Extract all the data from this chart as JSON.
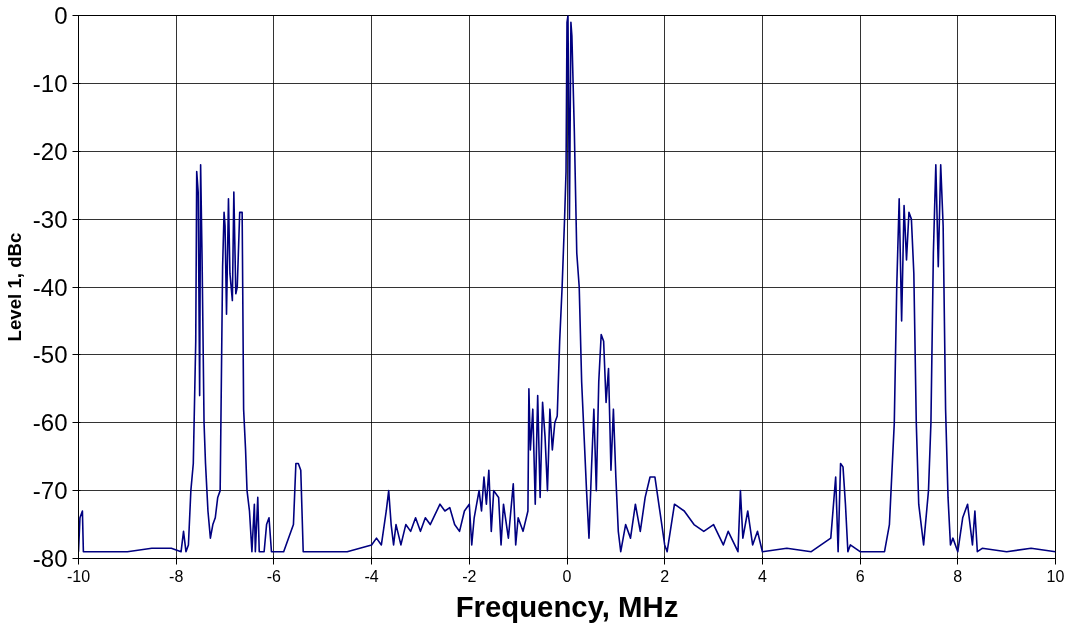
{
  "chart_data": {
    "type": "line",
    "xlabel": "Frequency, MHz",
    "ylabel": "Level 1, dBc",
    "xlim": [
      -10,
      10
    ],
    "ylim": [
      -80,
      0
    ],
    "xticks": [
      -10,
      -8,
      -6,
      -4,
      -2,
      0,
      2,
      4,
      6,
      8,
      10
    ],
    "yticks": [
      -80,
      -70,
      -60,
      -50,
      -40,
      -30,
      -20,
      -10,
      0
    ],
    "grid": true,
    "marker": "none",
    "line_style": "solid",
    "series": [
      {
        "color": "#000080",
        "x": [
          -10,
          -9.97,
          -9.92,
          -9.9,
          -9.5,
          -9,
          -8.5,
          -8.1,
          -7.9,
          -7.85,
          -7.8,
          -7.75,
          -7.7,
          -7.65,
          -7.6,
          -7.58,
          -7.55,
          -7.52,
          -7.5,
          -7.47,
          -7.43,
          -7.4,
          -7.35,
          -7.3,
          -7.25,
          -7.2,
          -7.15,
          -7.1,
          -7.05,
          -7.02,
          -7,
          -6.97,
          -6.93,
          -6.9,
          -6.85,
          -6.82,
          -6.78,
          -6.75,
          -6.7,
          -6.65,
          -6.62,
          -6.58,
          -6.55,
          -6.5,
          -6.45,
          -6.4,
          -6.38,
          -6.33,
          -6.3,
          -6.2,
          -6.15,
          -6.1,
          -6.05,
          -6,
          -5.8,
          -5.6,
          -5.55,
          -5.5,
          -5.45,
          -5.4,
          -5,
          -4.5,
          -4,
          -3.9,
          -3.8,
          -3.7,
          -3.65,
          -3.6,
          -3.55,
          -3.5,
          -3.4,
          -3.3,
          -3.2,
          -3.1,
          -3,
          -2.9,
          -2.8,
          -2.6,
          -2.5,
          -2.4,
          -2.3,
          -2.2,
          -2.1,
          -2,
          -1.95,
          -1.9,
          -1.8,
          -1.75,
          -1.7,
          -1.65,
          -1.6,
          -1.55,
          -1.5,
          -1.4,
          -1.35,
          -1.3,
          -1.2,
          -1.1,
          -1.05,
          -1,
          -0.9,
          -0.8,
          -0.78,
          -0.75,
          -0.7,
          -0.65,
          -0.6,
          -0.55,
          -0.5,
          -0.45,
          -0.4,
          -0.35,
          -0.3,
          -0.25,
          -0.2,
          -0.15,
          -0.1,
          -0.05,
          -0.02,
          0,
          0.02,
          0.05,
          0.08,
          0.1,
          0.15,
          0.2,
          0.25,
          0.3,
          0.35,
          0.4,
          0.45,
          0.5,
          0.55,
          0.6,
          0.65,
          0.7,
          0.75,
          0.8,
          0.85,
          0.9,
          0.95,
          1,
          1.05,
          1.1,
          1.2,
          1.3,
          1.4,
          1.5,
          1.6,
          1.7,
          1.8,
          1.9,
          2,
          2.05,
          2.2,
          2.4,
          2.6,
          2.8,
          3,
          3.2,
          3.3,
          3.5,
          3.55,
          3.6,
          3.7,
          3.8,
          3.9,
          4,
          4.5,
          5,
          5.4,
          5.5,
          5.55,
          5.6,
          5.65,
          5.7,
          5.75,
          5.8,
          6,
          6.5,
          6.6,
          6.7,
          6.75,
          6.8,
          6.85,
          6.9,
          6.95,
          7,
          7.05,
          7.1,
          7.15,
          7.2,
          7.3,
          7.4,
          7.45,
          7.5,
          7.55,
          7.6,
          7.65,
          7.7,
          7.75,
          7.8,
          7.85,
          7.9,
          8,
          8.1,
          8.2,
          8.3,
          8.35,
          8.4,
          8.5,
          9,
          9.5,
          10
        ],
        "values": [
          -79,
          -74,
          -73,
          -79,
          -79,
          -79,
          -78.5,
          -78.5,
          -79,
          -76,
          -79,
          -78,
          -70,
          -66,
          -48,
          -23,
          -26,
          -56,
          -22,
          -36,
          -60,
          -66,
          -73,
          -77,
          -75,
          -74,
          -71,
          -70,
          -37,
          -29,
          -31,
          -44,
          -27,
          -38,
          -42,
          -26,
          -41,
          -40,
          -29,
          -29,
          -58,
          -64,
          -70,
          -73,
          -79,
          -72,
          -79,
          -71,
          -79,
          -79,
          -75,
          -74,
          -79,
          -79,
          -79,
          -75,
          -66,
          -66,
          -67,
          -79,
          -79,
          -79,
          -78,
          -77,
          -78,
          -73,
          -70,
          -75,
          -78,
          -75,
          -78,
          -75,
          -76,
          -74,
          -76,
          -74,
          -75,
          -72,
          -73,
          -72.5,
          -75,
          -76,
          -73,
          -72,
          -78,
          -74,
          -70,
          -73,
          -68,
          -72,
          -67,
          -76,
          -70,
          -71,
          -78,
          -72,
          -77,
          -69,
          -78,
          -74,
          -76,
          -73,
          -55,
          -64,
          -58,
          -72,
          -56,
          -71,
          -57,
          -62,
          -70,
          -58,
          -64,
          -60,
          -59,
          -48,
          -40,
          -30,
          -23,
          -1,
          0,
          -30,
          -1,
          -3,
          -17,
          -35,
          -40,
          -54,
          -62,
          -70,
          -77,
          -67,
          -58,
          -70,
          -54,
          -47,
          -48,
          -57,
          -52,
          -67,
          -58,
          -68,
          -76,
          -79,
          -75,
          -77,
          -72,
          -76,
          -71,
          -68,
          -68,
          -73,
          -78,
          -79,
          -72,
          -73,
          -75,
          -76,
          -75,
          -78,
          -76,
          -79,
          -70,
          -77,
          -73,
          -78,
          -76,
          -79,
          -78.5,
          -79,
          -77,
          -68,
          -79,
          -66,
          -66.5,
          -72,
          -79,
          -78,
          -79,
          -79,
          -75,
          -60,
          -40,
          -27,
          -45,
          -28,
          -36,
          -29,
          -30,
          -38,
          -60,
          -72,
          -78,
          -70,
          -60,
          -35,
          -22,
          -37,
          -22,
          -31,
          -58,
          -71,
          -78,
          -77,
          -79,
          -74,
          -72,
          -78,
          -73,
          -79,
          -78.5,
          -79,
          -78.5,
          -79
        ]
      }
    ]
  }
}
